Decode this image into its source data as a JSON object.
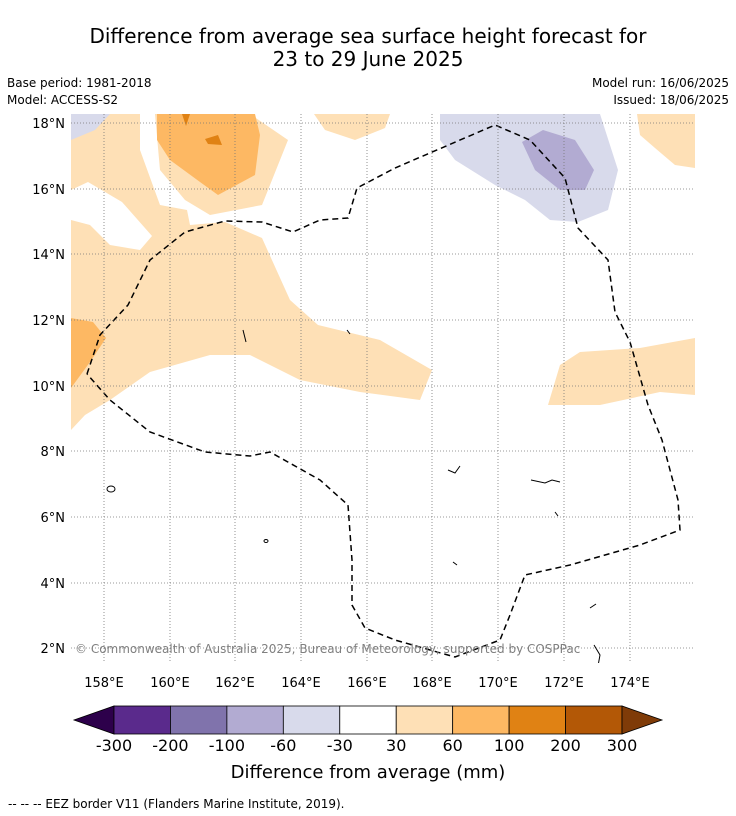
{
  "title_line1": "Difference from average sea surface height forecast for",
  "title_line2": "23 to 29 June 2025",
  "base_period": "Base period: 1981-2018",
  "model": "Model: ACCESS-S2",
  "model_run": "Model run: 16/06/2025",
  "issued": "Issued: 18/06/2025",
  "copyright": "© Commonwealth of Australia 2025, Bureau of Meteorology, supported by COSPPac",
  "lat_labels": [
    "18°N",
    "16°N",
    "14°N",
    "12°N",
    "10°N",
    "8°N",
    "6°N",
    "4°N",
    "2°N"
  ],
  "lon_labels": [
    "158°E",
    "160°E",
    "162°E",
    "164°E",
    "166°E",
    "168°E",
    "170°E",
    "172°E",
    "174°E"
  ],
  "colorbar": {
    "title": "Difference from average (mm)",
    "labels": [
      "-300",
      "-200",
      "-100",
      "-60",
      "-30",
      "30",
      "60",
      "100",
      "200",
      "300"
    ],
    "colors": [
      "#2d004b",
      "#5a2a8c",
      "#8073ac",
      "#b2abd2",
      "#d8daeb",
      "#ffffff",
      "#fee0b6",
      "#fdb863",
      "#e08214",
      "#b35806",
      "#7f3b08"
    ]
  },
  "footnote": "--  --  -- EEZ border V11 (Flanders Marine Institute, 2019)."
}
